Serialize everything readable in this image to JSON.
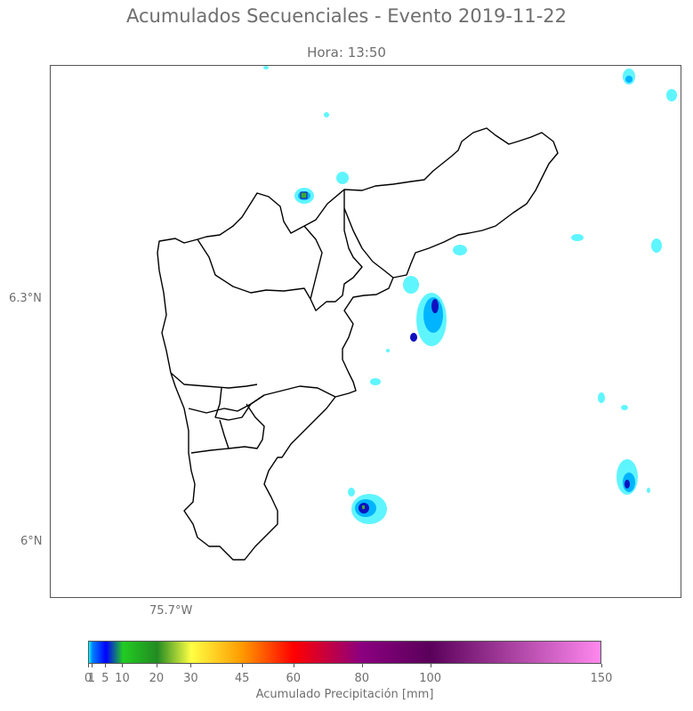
{
  "title": "Acumulados Secuenciales - Evento 2019-11-22",
  "subtitle": "Hora: 13:50",
  "axes": {
    "lat_labels": [
      "6.3°N",
      "6°N"
    ],
    "lon_labels": [
      "75.7°W"
    ]
  },
  "colorbar": {
    "label": "Acumulado Precipitación [mm]",
    "ticks": [
      "0",
      "1",
      "5",
      "10",
      "20",
      "30",
      "45",
      "60",
      "80",
      "100",
      "150"
    ],
    "tick_values": [
      0,
      1,
      5,
      10,
      20,
      30,
      45,
      60,
      80,
      100,
      150
    ],
    "max": 150,
    "colors": [
      "#00ffff",
      "#0080ff",
      "#0000ff",
      "#22cc22",
      "#228b22",
      "#ffff44",
      "#ff9900",
      "#ff0000",
      "#8b0080",
      "#5a005a",
      "#ff88ee"
    ]
  },
  "map_colors": {
    "boundary": "#000000",
    "light": "#5ff5ff",
    "mid": "#00b4ff",
    "dark": "#1010c0",
    "green": "#3aaa30"
  }
}
